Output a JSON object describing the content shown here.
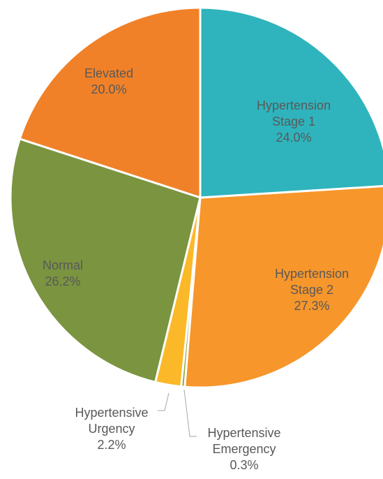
{
  "chart_data": {
    "type": "pie",
    "categories": [
      "Hypertension Stage 1",
      "Hypertension Stage 2",
      "Hypertensive Emergency",
      "Hypertensive Urgency",
      "Normal",
      "Elevated"
    ],
    "values": [
      24.0,
      27.3,
      0.3,
      2.2,
      26.2,
      20.0
    ],
    "value_labels": [
      "24.0%",
      "27.3%",
      "0.3%",
      "2.2%",
      "26.2%",
      "20.0%"
    ],
    "colors": [
      "#2fb4bd",
      "#f7962b",
      "#93a83e",
      "#fbb829",
      "#7a9440",
      "#f08128"
    ]
  }
}
